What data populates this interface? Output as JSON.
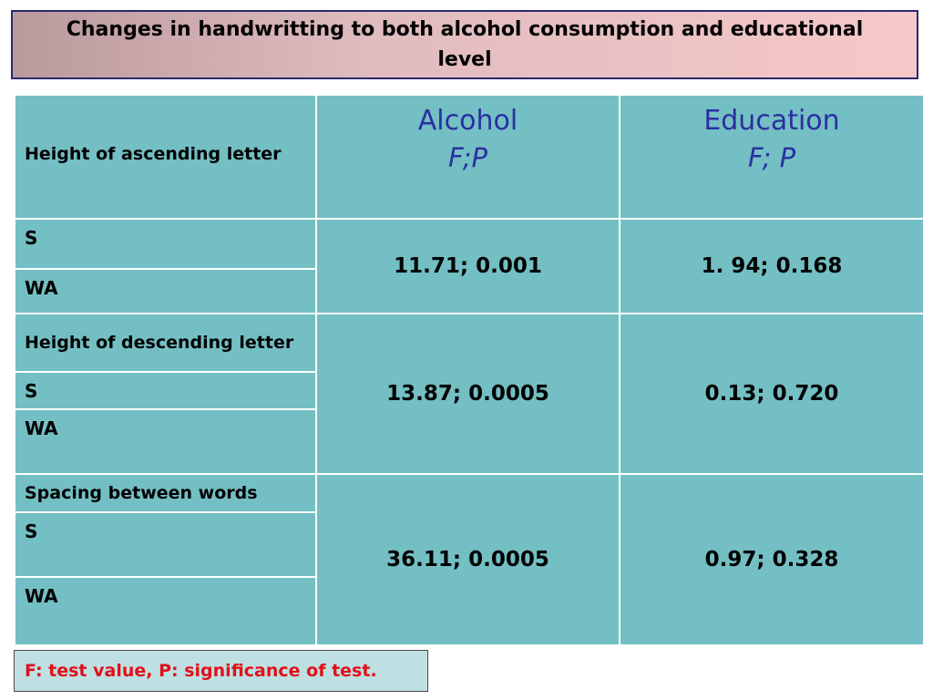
{
  "title": "Changes in handwritting to both alcohol consumption and educational level",
  "table": {
    "header": {
      "corner_label": "Height of ascending letter",
      "alcohol_title": "Alcohol",
      "alcohol_sub": "F;P",
      "education_title": "Education",
      "education_sub": "F; P"
    },
    "groups": [
      {
        "label": "",
        "rows": [
          "S",
          "WA"
        ],
        "alcohol": "11.71; 0.001",
        "education": "1. 94; 0.168"
      },
      {
        "label": "Height of descending letter",
        "rows": [
          "S",
          "WA"
        ],
        "alcohol": "13.87; 0.0005",
        "education": "0.13; 0.720"
      },
      {
        "label": "Spacing between words",
        "rows": [
          "S",
          "WA"
        ],
        "alcohol": "36.11; 0.0005",
        "education": "0.97; 0.328"
      }
    ]
  },
  "footnote": "F: test value, P: significance of test.",
  "colors": {
    "table_bg": "#73bfc4",
    "header_text": "#2c2ea1",
    "title_border": "#2b2870",
    "footnote_text": "#e0101a",
    "footnote_bg": "#bfe0e2"
  }
}
